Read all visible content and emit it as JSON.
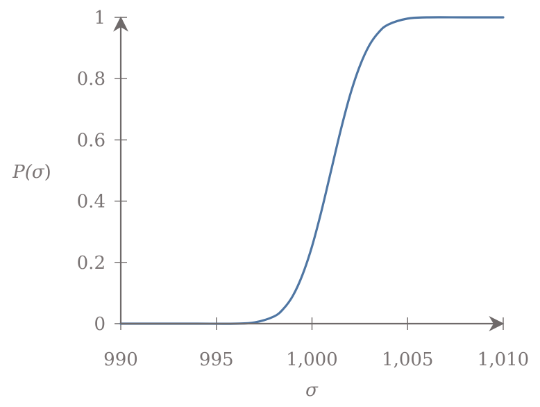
{
  "chart_data": {
    "type": "line",
    "title": "",
    "xlabel": "σ",
    "ylabel": "P(σ)",
    "xlim": [
      990,
      1010
    ],
    "ylim": [
      0,
      1
    ],
    "grid": false,
    "legend": null,
    "x_ticks": [
      "990",
      "995",
      "1,000",
      "1,005",
      "1,010"
    ],
    "y_ticks": [
      "0",
      "0.2",
      "0.4",
      "0.6",
      "0.8",
      "1"
    ],
    "series": [
      {
        "name": "P(σ)",
        "color": "#4f76a3",
        "x": [
          990,
          992,
          994,
          996,
          997,
          998,
          998.5,
          999,
          999.5,
          1000,
          1000.5,
          1001,
          1001.5,
          1002,
          1002.5,
          1003,
          1003.5,
          1004,
          1005,
          1006,
          1008,
          1010
        ],
        "values": [
          0,
          0,
          0,
          0,
          0.004,
          0.023,
          0.048,
          0.091,
          0.159,
          0.252,
          0.369,
          0.5,
          0.631,
          0.748,
          0.841,
          0.909,
          0.952,
          0.977,
          0.996,
          1.0,
          1.0,
          1.0
        ]
      }
    ]
  },
  "labels": {
    "x_axis": "σ",
    "y_axis_main": "P(",
    "y_axis_sigma": "σ",
    "y_axis_close": ")"
  },
  "colors": {
    "axis": "#6f6a6a",
    "line": "#4f76a3",
    "text": "#7a7474"
  }
}
